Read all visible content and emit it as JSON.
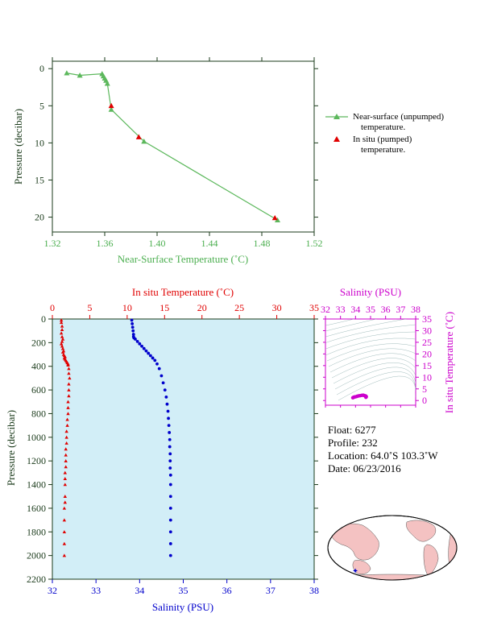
{
  "colors": {
    "green": "#5cb85c",
    "green_text": "#4caf50",
    "red": "#e00000",
    "blue": "#0000cc",
    "magenta": "#cc00cc",
    "panel_bg": "#d2eef7",
    "axis_dark": "#1a3a1a"
  },
  "chart_data": [
    {
      "type": "line",
      "xlabel": "Near-Surface Temperature (˚C)",
      "ylabel": "Pressure (decibar)",
      "xlim": [
        1.32,
        1.52
      ],
      "ylim": [
        22,
        -1
      ],
      "xticks": [
        "1.32",
        "1.36",
        "1.40",
        "1.44",
        "1.48",
        "1.52"
      ],
      "xtick_values": [
        1.32,
        1.36,
        1.4,
        1.44,
        1.48,
        1.52
      ],
      "yticks": [
        "0",
        "5",
        "10",
        "15",
        "20"
      ],
      "ytick_values": [
        0,
        5,
        10,
        15,
        20
      ],
      "series": [
        {
          "name": "Near-surface (unpumped) temperature.",
          "name_line1": "Near-surface (unpumped)",
          "name_line2": "temperature.",
          "color": "#5cb85c",
          "marker": "triangle",
          "x": [
            1.331,
            1.341,
            1.358,
            1.359,
            1.36,
            1.361,
            1.362,
            1.365,
            1.39,
            1.492
          ],
          "y": [
            0.6,
            0.9,
            0.7,
            1.0,
            1.3,
            1.6,
            2.0,
            5.5,
            9.8,
            20.4
          ]
        },
        {
          "name": "In situ (pumped) temperature.",
          "name_line1": "In situ (pumped)",
          "name_line2": "temperature.",
          "color": "#e00000",
          "marker": "triangle",
          "x": [
            1.365,
            1.386,
            1.49
          ],
          "y": [
            5.0,
            9.2,
            20.1
          ]
        }
      ]
    },
    {
      "type": "scatter",
      "title_top": "In situ Temperature (˚C)",
      "xlabel_top": "In situ Temperature (˚C)",
      "xlabel_bottom": "Salinity (PSU)",
      "ylabel": "Pressure (decibar)",
      "xlim_top": [
        0,
        35
      ],
      "xlim_bottom": [
        32,
        38
      ],
      "ylim": [
        2200,
        0
      ],
      "xticks_top": [
        "0",
        "5",
        "10",
        "15",
        "20",
        "25",
        "30",
        "35"
      ],
      "xticks_top_values": [
        0,
        5,
        10,
        15,
        20,
        25,
        30,
        35
      ],
      "xticks_bottom": [
        "32",
        "33",
        "34",
        "35",
        "36",
        "37",
        "38"
      ],
      "xticks_bottom_values": [
        32,
        33,
        34,
        35,
        36,
        37,
        38
      ],
      "yticks": [
        "0",
        "200",
        "400",
        "600",
        "800",
        "1000",
        "1200",
        "1400",
        "1600",
        "1800",
        "2000",
        "2200"
      ],
      "ytick_values": [
        0,
        200,
        400,
        600,
        800,
        1000,
        1200,
        1400,
        1600,
        1800,
        2000,
        2200
      ],
      "series": [
        {
          "axis": "top",
          "color": "#e00000",
          "marker": "triangle",
          "x": [
            1.2,
            1.2,
            1.3,
            1.3,
            1.2,
            1.3,
            1.4,
            1.3,
            1.2,
            1.3,
            1.4,
            1.5,
            1.4,
            1.5,
            1.6,
            1.7,
            1.6,
            1.7,
            1.8,
            1.9,
            2.0,
            2.1,
            2.1,
            2.2,
            2.2,
            2.3,
            2.2,
            2.2,
            2.2,
            2.1,
            2.1,
            2.1,
            2.0,
            2.0,
            1.9,
            1.9,
            1.9,
            1.8,
            1.8,
            1.8,
            1.8,
            1.7,
            1.7,
            1.7,
            1.7,
            1.7,
            1.6,
            1.6,
            1.6,
            1.6,
            1.6
          ],
          "y": [
            10,
            30,
            60,
            90,
            120,
            150,
            170,
            190,
            210,
            230,
            250,
            270,
            280,
            300,
            310,
            320,
            330,
            340,
            350,
            360,
            370,
            380,
            390,
            420,
            460,
            500,
            550,
            600,
            650,
            700,
            750,
            800,
            850,
            900,
            950,
            1000,
            1050,
            1100,
            1150,
            1200,
            1250,
            1300,
            1350,
            1400,
            1500,
            1550,
            1600,
            1700,
            1800,
            1900,
            2000
          ]
        },
        {
          "axis": "bottom",
          "color": "#0000cc",
          "marker": "circle",
          "x": [
            33.82,
            33.83,
            33.84,
            33.85,
            33.86,
            33.86,
            33.87,
            33.9,
            33.95,
            34.0,
            34.05,
            34.1,
            34.15,
            34.2,
            34.25,
            34.3,
            34.35,
            34.4,
            34.45,
            34.5,
            34.54,
            34.58,
            34.61,
            34.63,
            34.65,
            34.66,
            34.67,
            34.68,
            34.69,
            34.69,
            34.7,
            34.7,
            34.7,
            34.71,
            34.71,
            34.71,
            34.71,
            34.71,
            34.71,
            34.71,
            34.71
          ],
          "y": [
            10,
            40,
            70,
            100,
            130,
            150,
            160,
            170,
            190,
            210,
            230,
            250,
            270,
            290,
            310,
            330,
            350,
            380,
            420,
            480,
            540,
            600,
            660,
            720,
            780,
            840,
            900,
            960,
            1020,
            1080,
            1140,
            1200,
            1260,
            1320,
            1400,
            1500,
            1600,
            1700,
            1800,
            1900,
            2000
          ]
        }
      ]
    },
    {
      "type": "scatter",
      "xlabel": "Salinity (PSU)",
      "ylabel": "In situ Temperature (˚C)",
      "xlim": [
        32,
        38
      ],
      "ylim": [
        -2,
        35
      ],
      "xticks": [
        "32",
        "33",
        "34",
        "35",
        "36",
        "37",
        "38"
      ],
      "xtick_values": [
        32,
        33,
        34,
        35,
        36,
        37,
        38
      ],
      "yticks": [
        "0",
        "5",
        "10",
        "15",
        "20",
        "25",
        "30",
        "35"
      ],
      "ytick_values": [
        0,
        5,
        10,
        15,
        20,
        25,
        30,
        35
      ],
      "series": [
        {
          "color": "#cc00cc",
          "marker": "circle",
          "x": [
            33.82,
            33.85,
            33.88,
            33.92,
            34.0,
            34.1,
            34.2,
            34.3,
            34.4,
            34.5,
            34.55,
            34.6,
            34.65,
            34.68,
            34.7,
            34.71,
            34.71,
            34.7,
            34.69
          ],
          "y": [
            1.2,
            1.3,
            1.4,
            1.5,
            1.6,
            1.8,
            2.0,
            2.1,
            2.2,
            2.3,
            2.2,
            2.1,
            2.0,
            1.9,
            1.8,
            1.7,
            1.6,
            1.5,
            1.4
          ]
        }
      ]
    }
  ],
  "info": {
    "float": "Float:  6277",
    "profile": "Profile:  232",
    "location": "Location:  64.0˚S  103.3˚W",
    "date": "Date:  06/23/2016"
  },
  "map": {
    "float_lat": -64.0,
    "float_lon": -103.3,
    "marker_color": "#0000cc"
  }
}
